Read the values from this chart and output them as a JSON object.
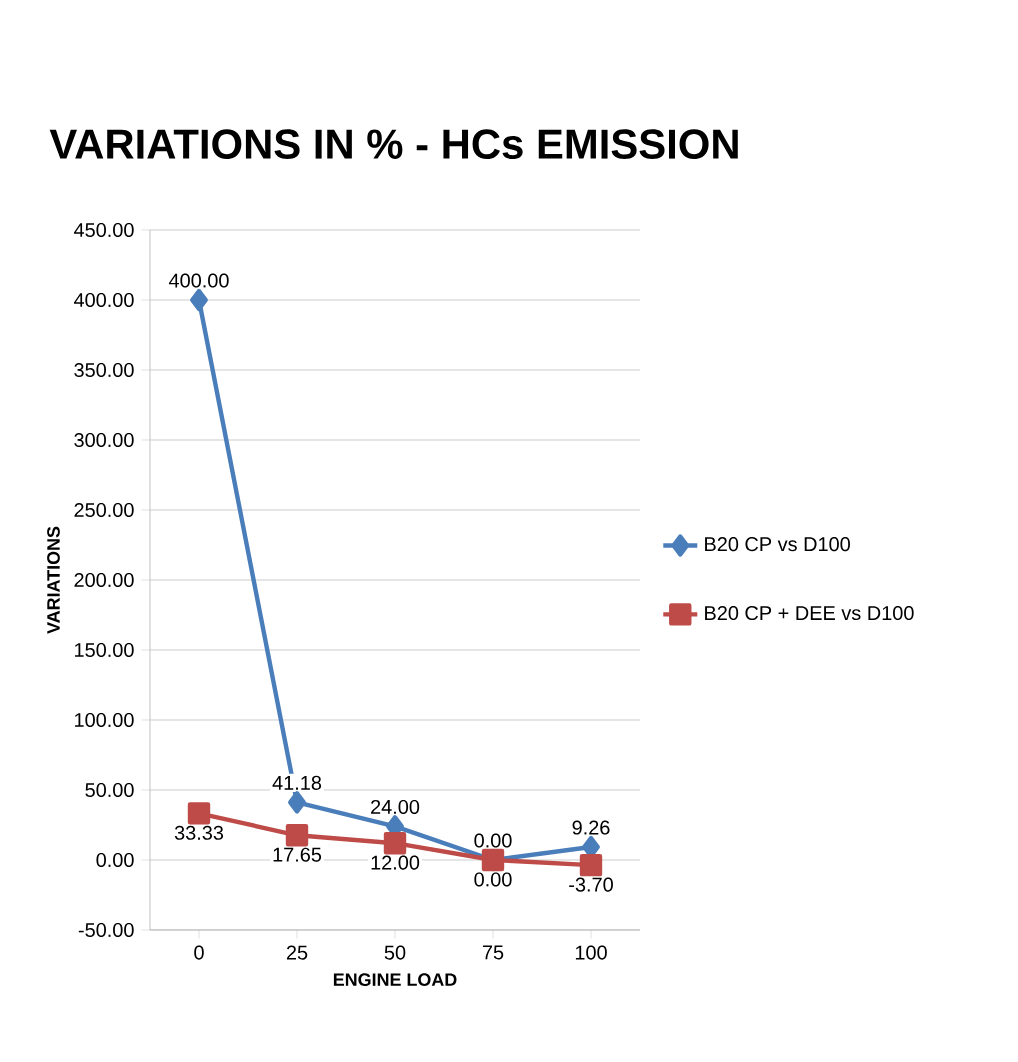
{
  "chart_data": {
    "type": "line",
    "title": "VARIATIONS IN % - HCs EMISSION",
    "xlabel": "ENGINE LOAD",
    "ylabel": "VARIATIONS",
    "categories": [
      "0",
      "25",
      "50",
      "75",
      "100"
    ],
    "series": [
      {
        "name": "B20 CP vs D100",
        "color": "#4a7ebb",
        "marker": "diamond",
        "values": [
          400.0,
          41.18,
          24.0,
          0.0,
          9.26
        ],
        "value_labels": [
          "400.00",
          "41.18",
          "24.00",
          "0.00",
          "9.26"
        ]
      },
      {
        "name": "B20 CP + DEE vs D100",
        "color": "#be4b48",
        "marker": "square",
        "values": [
          33.33,
          17.65,
          12.0,
          0.0,
          -3.7
        ],
        "value_labels": [
          "33.33",
          "17.65",
          "12.00",
          "0.00",
          "-3.70"
        ]
      }
    ],
    "ylim": [
      -50,
      450
    ],
    "yticks": [
      {
        "value": -50,
        "label": "-50.00"
      },
      {
        "value": 0,
        "label": "0.00"
      },
      {
        "value": 50,
        "label": "50.00"
      },
      {
        "value": 100,
        "label": "100.00"
      },
      {
        "value": 150,
        "label": "150.00"
      },
      {
        "value": 200,
        "label": "200.00"
      },
      {
        "value": 250,
        "label": "250.00"
      },
      {
        "value": 300,
        "label": "300.00"
      },
      {
        "value": 350,
        "label": "350.00"
      },
      {
        "value": 400,
        "label": "400.00"
      },
      {
        "value": 450,
        "label": "450.00"
      }
    ],
    "grid": "y",
    "legend": "right",
    "line_style": "solid"
  }
}
